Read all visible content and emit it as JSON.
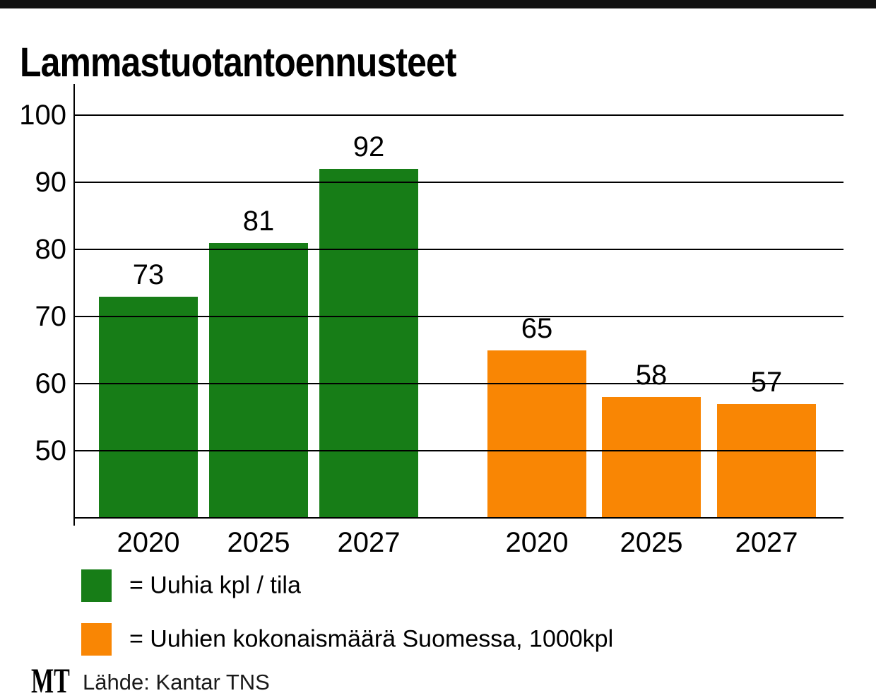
{
  "title": "Lammastuotantoennusteet",
  "chart_data": {
    "type": "bar",
    "title": "Lammastuotantoennusteet",
    "categories": [
      "2020",
      "2025",
      "2027",
      "2020",
      "2025",
      "2027"
    ],
    "series": [
      {
        "name": "Uuhia kpl / tila",
        "color": "#177d17",
        "categories": [
          "2020",
          "2025",
          "2027"
        ],
        "values": [
          73,
          81,
          92
        ]
      },
      {
        "name": "Uuhien kokonaismäärä Suomessa, 1000kpl",
        "color": "#f98604",
        "categories": [
          "2020",
          "2025",
          "2027"
        ],
        "values": [
          65,
          58,
          57
        ]
      }
    ],
    "xlabel": "",
    "ylabel": "",
    "yticks": [
      50,
      60,
      70,
      80,
      90,
      100
    ],
    "ylim": [
      40,
      104.6
    ],
    "grid": true,
    "grid_over_bars": true,
    "value_labels": true,
    "legend_position": "below"
  },
  "legend": {
    "items": [
      {
        "label": "= Uuhia kpl / tila",
        "color": "#177d17"
      },
      {
        "label": "= Uuhien kokonaismäärä Suomessa, 1000kpl",
        "color": "#f98604"
      }
    ]
  },
  "footer": {
    "logo_text": "MT",
    "source_text": "Lähde: Kantar TNS"
  },
  "colors": {
    "bar_green": "#177d17",
    "bar_orange": "#f98604",
    "axis": "#000000",
    "top_bar": "#111111",
    "background": "#ffffff"
  }
}
